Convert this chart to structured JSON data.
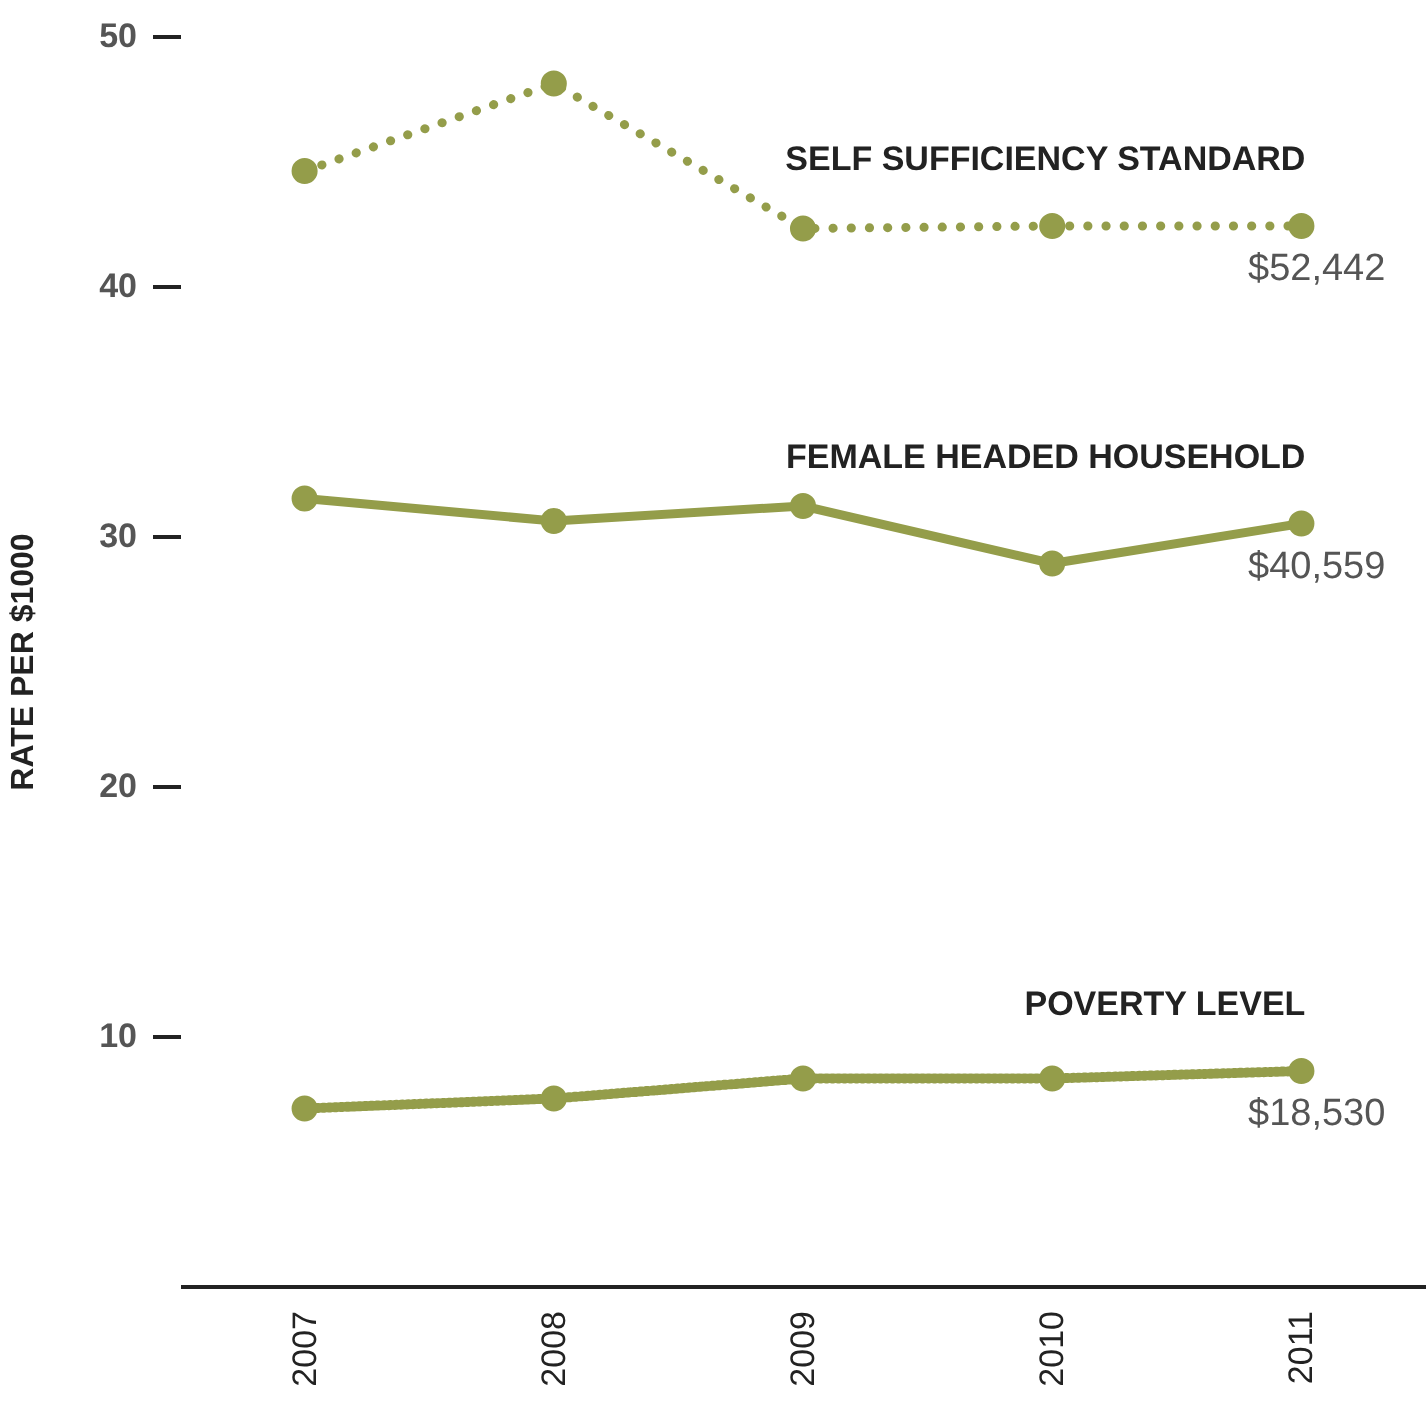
{
  "chart_data": {
    "type": "line",
    "ylabel": "RATE PER $1000",
    "categories": [
      "2007",
      "2008",
      "2009",
      "2010",
      "2011"
    ],
    "series": [
      {
        "name": "SELF SUFFICIENCY STANDARD",
        "color": "#949d4a",
        "line_style": "dotted",
        "values": [
          44.6,
          48.1,
          42.3,
          42.4,
          42.4
        ]
      },
      {
        "name": "FEMALE HEADED HOUSEHOLD",
        "color": "#949d4a",
        "line_style": "solid",
        "values": [
          31.5,
          30.6,
          31.2,
          28.9,
          30.5
        ]
      },
      {
        "name": "POVERTY LEVEL",
        "color": "#949d4a",
        "line_style": "dashed",
        "values": [
          7.1,
          7.5,
          8.3,
          8.3,
          8.6
        ]
      }
    ],
    "annotations": [
      {
        "text": "$52,442",
        "x": "2011",
        "y": 42.4
      },
      {
        "text": "$40,559",
        "x": "2011",
        "y": 30.5
      },
      {
        "text": "$18,530",
        "x": "2011",
        "y": 8.6
      }
    ],
    "ylim": [
      0,
      50
    ],
    "yticks": [
      10,
      20,
      30,
      40,
      50
    ],
    "grid": false,
    "marker": "circle"
  }
}
